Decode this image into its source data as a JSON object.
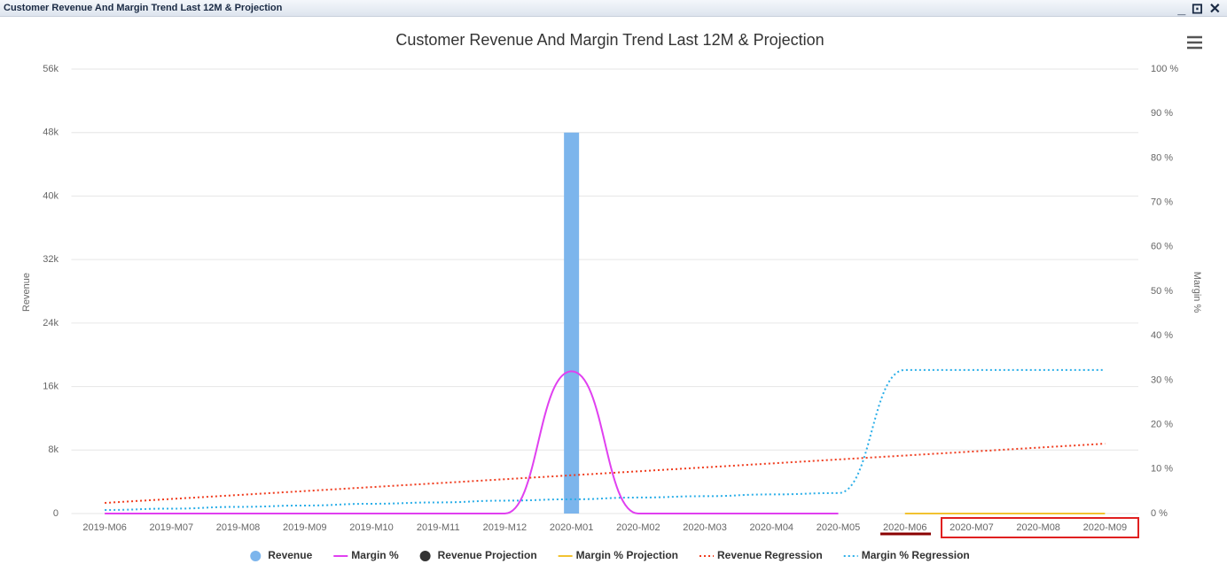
{
  "window": {
    "title": "Customer Revenue And Margin Trend Last 12M & Projection"
  },
  "chart_data": {
    "type": "combo",
    "title": "Customer Revenue And Margin Trend Last 12M & Projection",
    "y_label": "Revenue",
    "y2_label": "Margin %",
    "categories": [
      "2019-M06",
      "2019-M07",
      "2019-M08",
      "2019-M09",
      "2019-M10",
      "2019-M11",
      "2019-M12",
      "2020-M01",
      "2020-M02",
      "2020-M03",
      "2020-M04",
      "2020-M05",
      "2020-M06",
      "2020-M07",
      "2020-M08",
      "2020-M09"
    ],
    "ylim": [
      0,
      56000
    ],
    "yticks": [
      0,
      {
        "value": 8000,
        "label": "8k"
      },
      {
        "value": 16000,
        "label": "16k"
      },
      {
        "value": 24000,
        "label": "24k"
      },
      {
        "value": 32000,
        "label": "32k"
      },
      {
        "value": 40000,
        "label": "40k"
      },
      {
        "value": 48000,
        "label": "48k"
      },
      {
        "value": 56000,
        "label": "56k"
      }
    ],
    "y2lim": [
      0,
      100
    ],
    "y2ticks": [
      {
        "value": 0,
        "label": "0 %"
      },
      {
        "value": 10,
        "label": "10 %"
      },
      {
        "value": 20,
        "label": "20 %"
      },
      {
        "value": 30,
        "label": "30 %"
      },
      {
        "value": 40,
        "label": "40 %"
      },
      {
        "value": 50,
        "label": "50 %"
      },
      {
        "value": 60,
        "label": "60 %"
      },
      {
        "value": 70,
        "label": "70 %"
      },
      {
        "value": 80,
        "label": "80 %"
      },
      {
        "value": 90,
        "label": "90 %"
      },
      {
        "value": 100,
        "label": "100 %"
      }
    ],
    "grid": true,
    "series": [
      {
        "name": "Revenue",
        "kind": "column",
        "color": "#7cb5ec",
        "values": [
          0,
          0,
          0,
          0,
          0,
          0,
          0,
          48000,
          0,
          0,
          0,
          0,
          null,
          null,
          null,
          null
        ]
      },
      {
        "name": "Margin %",
        "kind": "spline",
        "axis": "y2",
        "color": "#e040f0",
        "values": [
          0,
          0,
          0,
          0,
          0,
          0,
          0,
          32,
          0,
          0,
          0,
          0,
          null,
          null,
          null,
          null
        ]
      },
      {
        "name": "Revenue Projection",
        "kind": "point",
        "color": "#333333",
        "values": [
          null,
          null,
          null,
          null,
          null,
          null,
          null,
          null,
          null,
          null,
          null,
          null,
          null,
          null,
          null,
          null
        ]
      },
      {
        "name": "Margin % Projection",
        "kind": "line",
        "axis": "y2",
        "color": "#f2c230",
        "values": [
          null,
          null,
          null,
          null,
          null,
          null,
          null,
          null,
          null,
          null,
          null,
          null,
          0,
          0,
          0,
          0
        ]
      },
      {
        "name": "Revenue Regression",
        "kind": "dotted",
        "color": "#f03c1e",
        "values": [
          1340,
          1837,
          2335,
          2832,
          3329,
          3827,
          4324,
          4821,
          5319,
          5816,
          6313,
          6811,
          7308,
          7805,
          8303,
          8800
        ]
      },
      {
        "name": "Margin % Regression",
        "kind": "dotted-spline",
        "axis": "y2",
        "color": "#2aaee8",
        "values": [
          0.8,
          1.1,
          1.5,
          1.8,
          2.2,
          2.5,
          2.9,
          3.2,
          3.6,
          3.9,
          4.3,
          4.6,
          32.3,
          32.3,
          32.3,
          32.3
        ]
      }
    ]
  }
}
